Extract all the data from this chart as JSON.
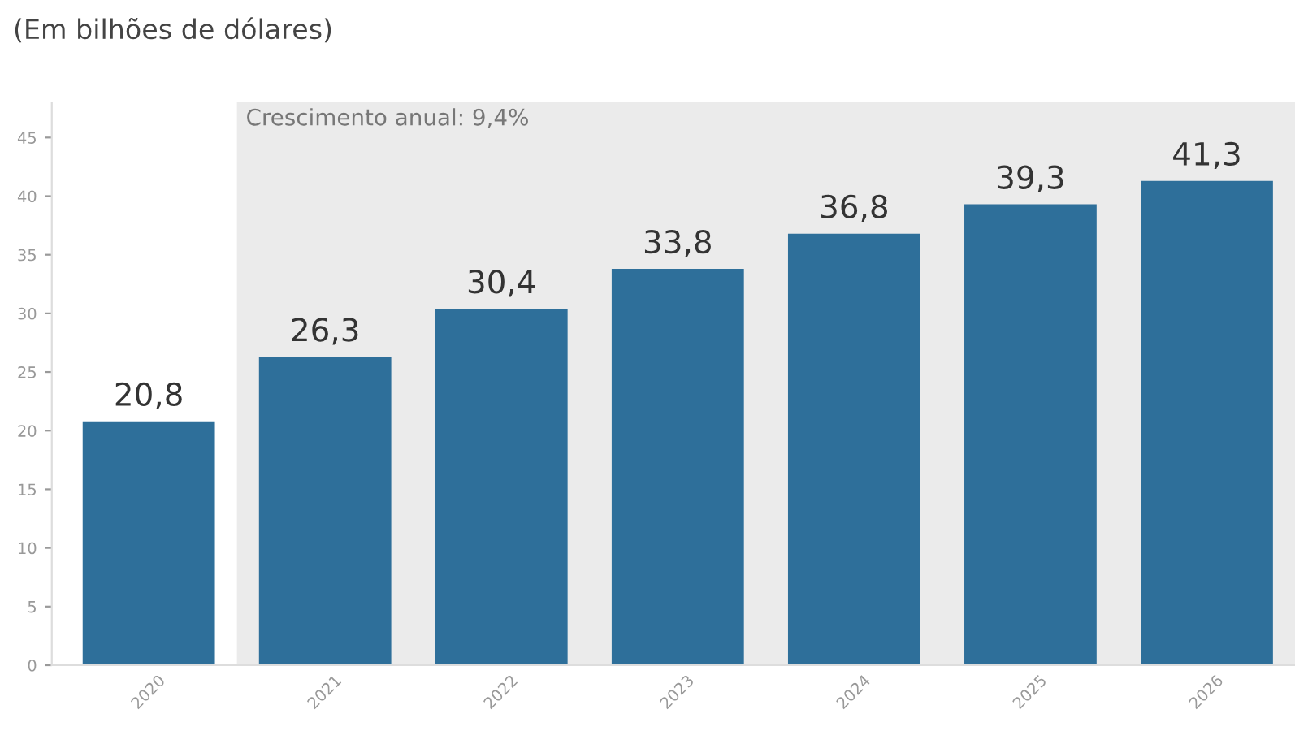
{
  "chart_data": {
    "type": "bar",
    "title": "(Em bilhões de dólares)",
    "categories": [
      "2020",
      "2021",
      "2022",
      "2023",
      "2024",
      "2025",
      "2026"
    ],
    "values": [
      20.8,
      26.3,
      30.4,
      33.8,
      36.8,
      39.3,
      41.3
    ],
    "value_labels": [
      "20,8",
      "26,3",
      "30,4",
      "33,8",
      "36,8",
      "39,3",
      "41,3"
    ],
    "color": "#2e6f9a",
    "ylim": [
      0,
      48
    ],
    "yticks": [
      0,
      5,
      10,
      15,
      20,
      25,
      30,
      35,
      40,
      45
    ],
    "bands": [
      {
        "axis": "x",
        "from": "2021",
        "to": "2026",
        "label": "Crescimento anual: 9,4%",
        "color": "#ebebeb"
      }
    ],
    "grid": false,
    "legend": false
  }
}
